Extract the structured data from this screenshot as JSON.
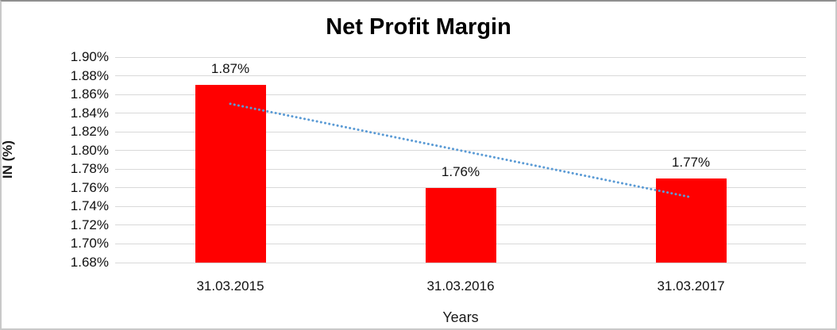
{
  "chart_data": {
    "type": "bar",
    "title": "Net Profit Margin",
    "xlabel": "Years",
    "ylabel": "IN (%)",
    "categories": [
      "31.03.2015",
      "31.03.2016",
      "31.03.2017"
    ],
    "values": [
      1.87,
      1.76,
      1.77
    ],
    "value_labels": [
      "1.87%",
      "1.76%",
      "1.77%"
    ],
    "ylim": [
      1.68,
      1.9
    ],
    "y_tick_step": 0.02,
    "y_ticks": [
      "1.90%",
      "1.88%",
      "1.86%",
      "1.84%",
      "1.82%",
      "1.80%",
      "1.78%",
      "1.76%",
      "1.74%",
      "1.72%",
      "1.70%",
      "1.68%"
    ],
    "grid": true,
    "legend_position": "none",
    "bar_color": "#ff0000",
    "gridline_color": "#d9d9d9",
    "text_color": "#111111",
    "trendline": {
      "type": "linear",
      "style": "dotted",
      "color": "#5b9bd5",
      "start_value": 1.85,
      "end_value": 1.75
    }
  }
}
